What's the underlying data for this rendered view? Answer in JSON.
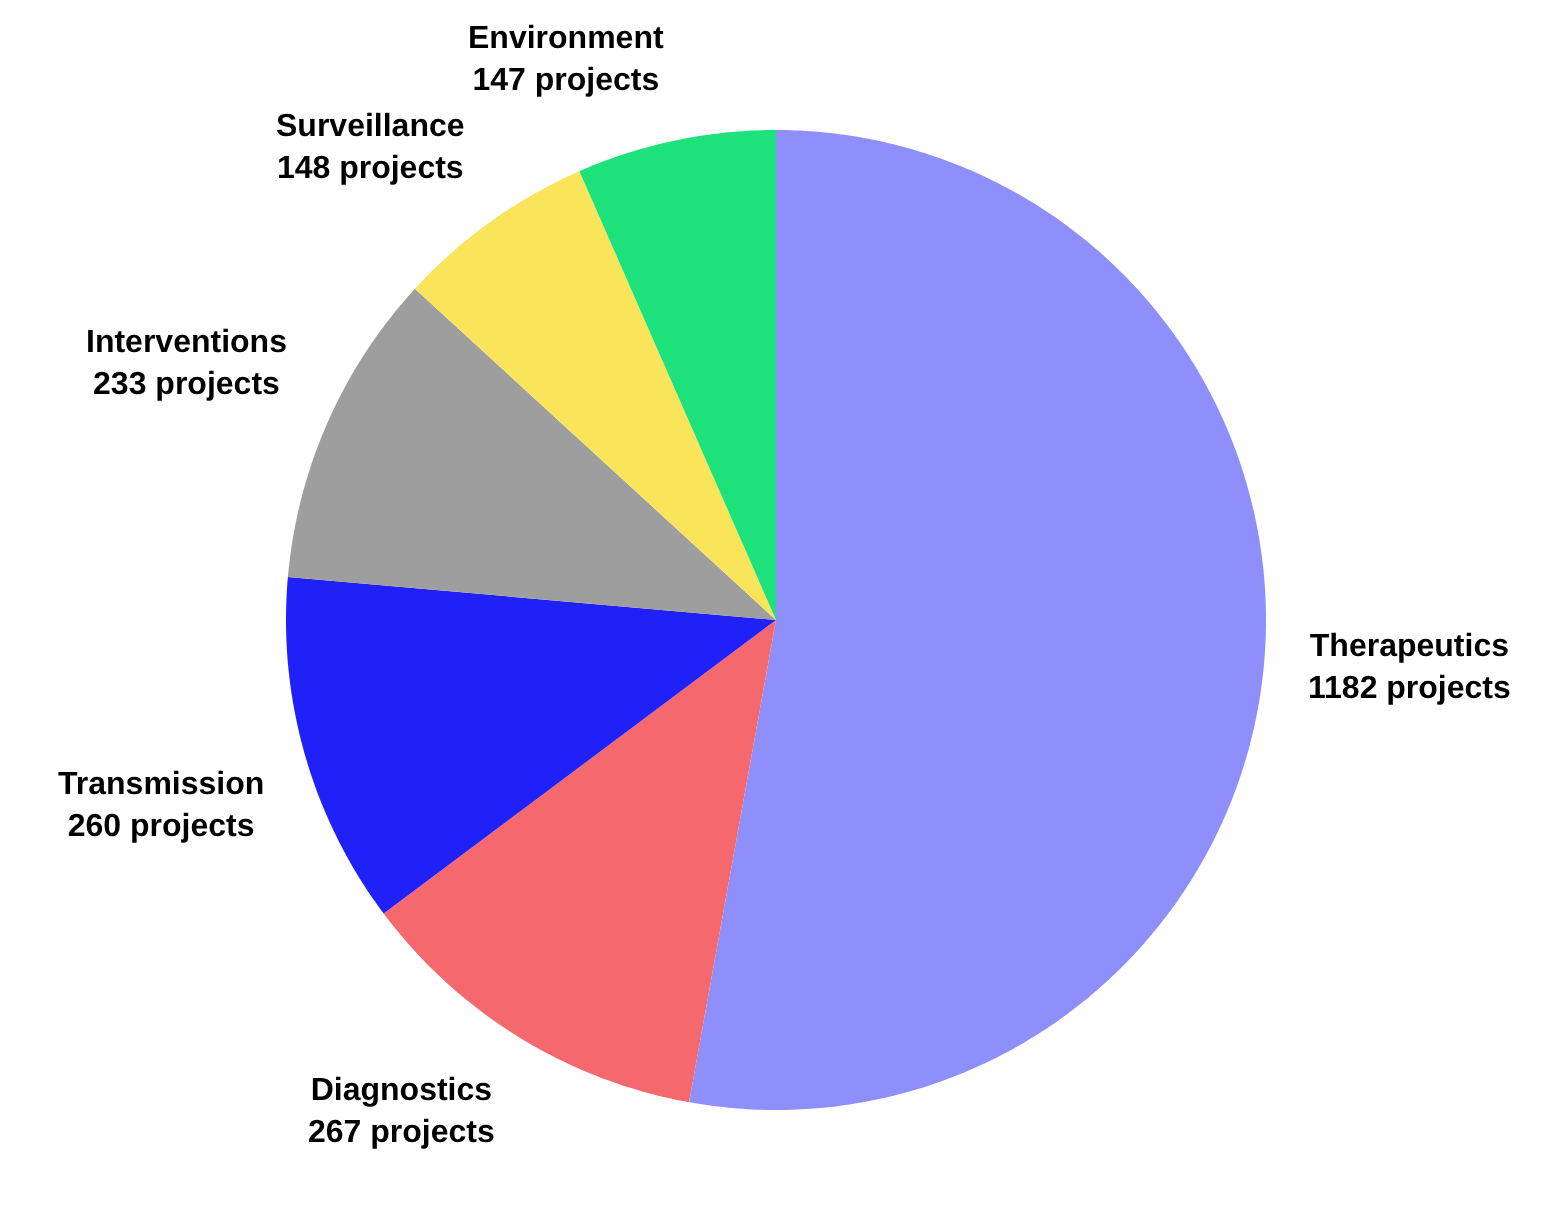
{
  "chart_data": {
    "type": "pie",
    "categories": [
      "Therapeutics",
      "Diagnostics",
      "Transmission",
      "Interventions",
      "Surveillance",
      "Environment"
    ],
    "values": [
      1182,
      267,
      260,
      233,
      148,
      147
    ],
    "value_labels": [
      "1182 projects",
      "267 projects",
      "260 projects",
      "233 projects",
      "148 projects",
      "147 projects"
    ],
    "colors": [
      "#8f8ffc",
      "#f4686e",
      "#2020f8",
      "#9e9e9e",
      "#f9e45a",
      "#1de27c"
    ],
    "legend": false
  }
}
